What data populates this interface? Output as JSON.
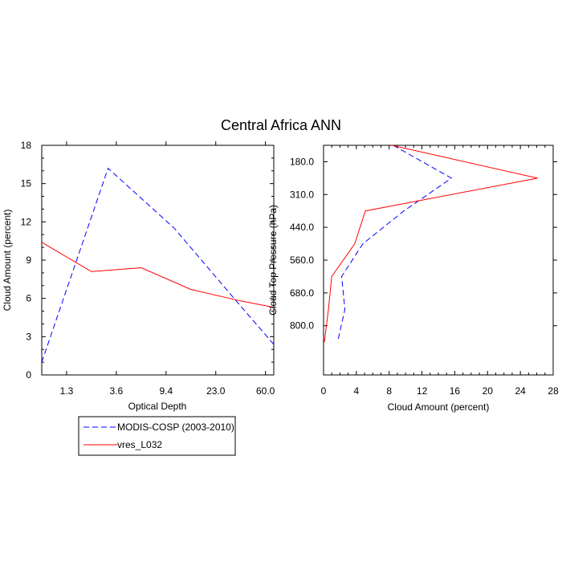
{
  "title": "Central Africa ANN",
  "colors": {
    "modis": "#0000ff",
    "model": "#ff0000",
    "axis": "#000000",
    "background": "#ffffff"
  },
  "legend": {
    "placement": "bottom-left",
    "entries": [
      {
        "label": "MODIS-COSP (2003-2010)",
        "color": "#0000ff",
        "dash": "dashed"
      },
      {
        "label": "vres_L032",
        "color": "#ff0000",
        "dash": "solid"
      }
    ]
  },
  "chart_data": [
    {
      "type": "line",
      "panel": "left",
      "title": "",
      "xlabel": "Optical Depth",
      "ylabel": "Cloud Amount (percent)",
      "x_tick_labels": [
        "1.3",
        "3.6",
        "9.4",
        "23.0",
        "60.0"
      ],
      "x_bins": 7,
      "ylim": [
        0,
        18
      ],
      "y_ticks": [
        0,
        3,
        6,
        9,
        12,
        15,
        18
      ],
      "series": [
        {
          "name": "MODIS-COSP (2003-2010)",
          "color": "#0000ff",
          "dash": "dashed",
          "x": [
            0,
            2,
            4,
            6,
            7
          ],
          "y": [
            1.0,
            16.2,
            11.5,
            5.4,
            2.4
          ]
        },
        {
          "name": "vres_L032",
          "color": "#ff0000",
          "dash": "solid",
          "x": [
            0,
            1.5,
            3,
            4.5,
            6,
            7
          ],
          "y": [
            10.4,
            8.1,
            8.4,
            6.7,
            5.8,
            5.3
          ]
        }
      ]
    },
    {
      "type": "line",
      "panel": "right",
      "title": "",
      "xlabel": "Cloud Amount (percent)",
      "ylabel": "Cloud Top Pressure (hPa)",
      "xlim": [
        0,
        28
      ],
      "x_ticks": [
        0,
        4,
        8,
        12,
        16,
        20,
        24,
        28
      ],
      "y_tick_labels": [
        "180.0",
        "310.0",
        "440.0",
        "560.0",
        "680.0",
        "800.0"
      ],
      "y_bins": 7,
      "series": [
        {
          "name": "MODIS-COSP (2003-2010)",
          "color": "#0000ff",
          "dash": "dashed",
          "level": [
            0,
            1,
            2,
            3,
            4,
            5,
            6
          ],
          "x": [
            8.5,
            15.6,
            9.8,
            4.8,
            2.2,
            2.6,
            1.7
          ]
        },
        {
          "name": "vres_L032",
          "color": "#ff0000",
          "dash": "solid",
          "level": [
            0,
            1,
            2,
            3,
            4,
            5,
            6
          ],
          "x": [
            8.3,
            26.1,
            5.1,
            3.8,
            1.0,
            0.6,
            0.1
          ]
        }
      ]
    }
  ]
}
